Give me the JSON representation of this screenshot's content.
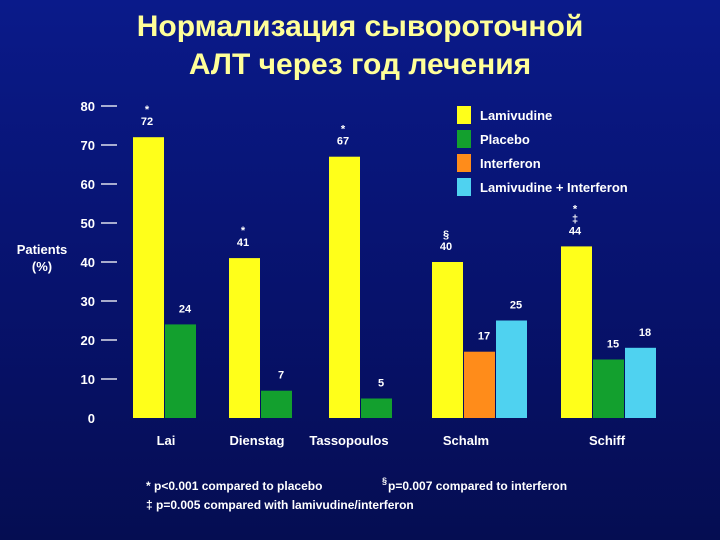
{
  "title_lines": [
    "Нормализация сывороточной",
    "АЛТ через год лечения"
  ],
  "chart_data": {
    "type": "bar",
    "ylabel_lines": [
      "Patients",
      "(%)"
    ],
    "ylim": [
      0,
      80
    ],
    "yticks": [
      0,
      10,
      20,
      30,
      40,
      50,
      60,
      70,
      80
    ],
    "grid": false,
    "legend_position": "top-right",
    "categories": [
      "Lai",
      "Dienstag",
      "Tassopoulos",
      "Schalm",
      "Schiff"
    ],
    "series": [
      {
        "name": "Lamivudine",
        "color": "#ffff1a"
      },
      {
        "name": "Placebo",
        "color": "#13a02e"
      },
      {
        "name": "Interferon",
        "color": "#ff8c1a"
      },
      {
        "name": "Lamivudine + Interferon",
        "color": "#4fd2f0"
      }
    ],
    "bars": [
      {
        "category": "Lai",
        "series": "Lamivudine",
        "value": 72,
        "label": "72",
        "marks": [
          "*"
        ]
      },
      {
        "category": "Lai",
        "series": "Placebo",
        "value": 24,
        "label": "24",
        "marks": []
      },
      {
        "category": "Dienstag",
        "series": "Lamivudine",
        "value": 41,
        "label": "41",
        "marks": [
          "*"
        ]
      },
      {
        "category": "Dienstag",
        "series": "Placebo",
        "value": 7,
        "label": "7",
        "marks": []
      },
      {
        "category": "Tassopoulos",
        "series": "Lamivudine",
        "value": 67,
        "label": "67",
        "marks": [
          "*"
        ]
      },
      {
        "category": "Tassopoulos",
        "series": "Placebo",
        "value": 5,
        "label": "5",
        "marks": []
      },
      {
        "category": "Schalm",
        "series": "Lamivudine",
        "value": 40,
        "label": "40",
        "marks": [
          "§"
        ]
      },
      {
        "category": "Schalm",
        "series": "Interferon",
        "value": 17,
        "label": "17",
        "marks": []
      },
      {
        "category": "Schalm",
        "series": "Lamivudine + Interferon",
        "value": 25,
        "label": "25",
        "marks": []
      },
      {
        "category": "Schiff",
        "series": "Lamivudine",
        "value": 44,
        "label": "44",
        "marks": [
          "*",
          "‡"
        ]
      },
      {
        "category": "Schiff",
        "series": "Placebo",
        "value": 15,
        "label": "15",
        "marks": []
      },
      {
        "category": "Schiff",
        "series": "Lamivudine + Interferon",
        "value": 18,
        "label": "18",
        "marks": []
      }
    ]
  },
  "footnotes": {
    "line1_a": "* p<0.001 compared to placebo",
    "line1_b_super": "§",
    "line1_b": "p=0.007 compared to interferon",
    "line2": "‡ p=0.005 compared with lamivudine/interferon"
  }
}
